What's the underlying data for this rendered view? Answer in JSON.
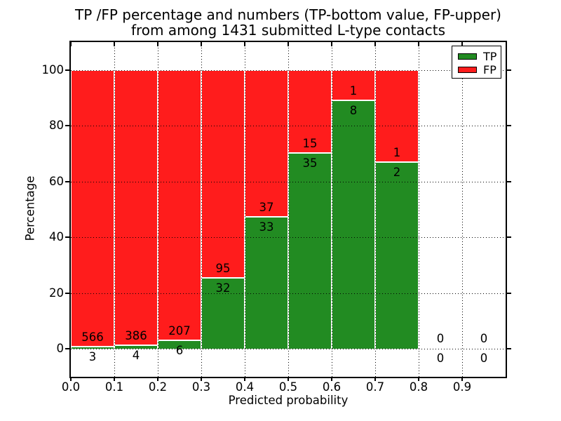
{
  "chart": {
    "title_line1": "TP /FP percentage and numbers (TP-bottom value, FP-upper)",
    "title_line2": "from among 1431 submitted L-type contacts",
    "xlabel": "Predicted probability",
    "ylabel": "Percentage"
  },
  "chart_data": {
    "type": "bar",
    "stacked": true,
    "title": "TP /FP percentage and numbers (TP-bottom value, FP-upper) from among 1431 submitted L-type contacts",
    "xlabel": "Predicted probability",
    "ylabel": "Percentage",
    "total_submitted": 1431,
    "bin_starts": [
      0.0,
      0.1,
      0.2,
      0.3,
      0.4,
      0.5,
      0.6,
      0.7,
      0.8,
      0.9
    ],
    "bin_width": 0.1,
    "series": [
      {
        "name": "TP",
        "color": "#228b22",
        "counts": [
          3,
          4,
          6,
          32,
          33,
          35,
          8,
          2,
          0,
          0
        ]
      },
      {
        "name": "FP",
        "color": "#ff1c1c",
        "counts": [
          566,
          386,
          207,
          95,
          37,
          15,
          1,
          1,
          0,
          0
        ]
      }
    ],
    "tp_percent": [
      0.53,
      1.03,
      2.82,
      25.2,
      47.14,
      70.0,
      88.89,
      66.67,
      null,
      null
    ],
    "xlim": [
      0.0,
      1.0
    ],
    "ylim": [
      -10,
      110
    ],
    "xtick_labels": [
      "0.0",
      "0.1",
      "0.2",
      "0.3",
      "0.4",
      "0.5",
      "0.6",
      "0.7",
      "0.8",
      "0.9"
    ],
    "ytick_values": [
      0,
      20,
      40,
      60,
      80,
      100
    ],
    "ytick_labels": [
      "0",
      "20",
      "40",
      "60",
      "80",
      "100"
    ],
    "grid": "dotted both axes, drawn above bars",
    "bar_edge_color": "#ffffff",
    "legend": {
      "position": "upper right",
      "entries": [
        {
          "label": "TP",
          "color": "#228b22"
        },
        {
          "label": "FP",
          "color": "#ff1c1c"
        }
      ]
    }
  }
}
